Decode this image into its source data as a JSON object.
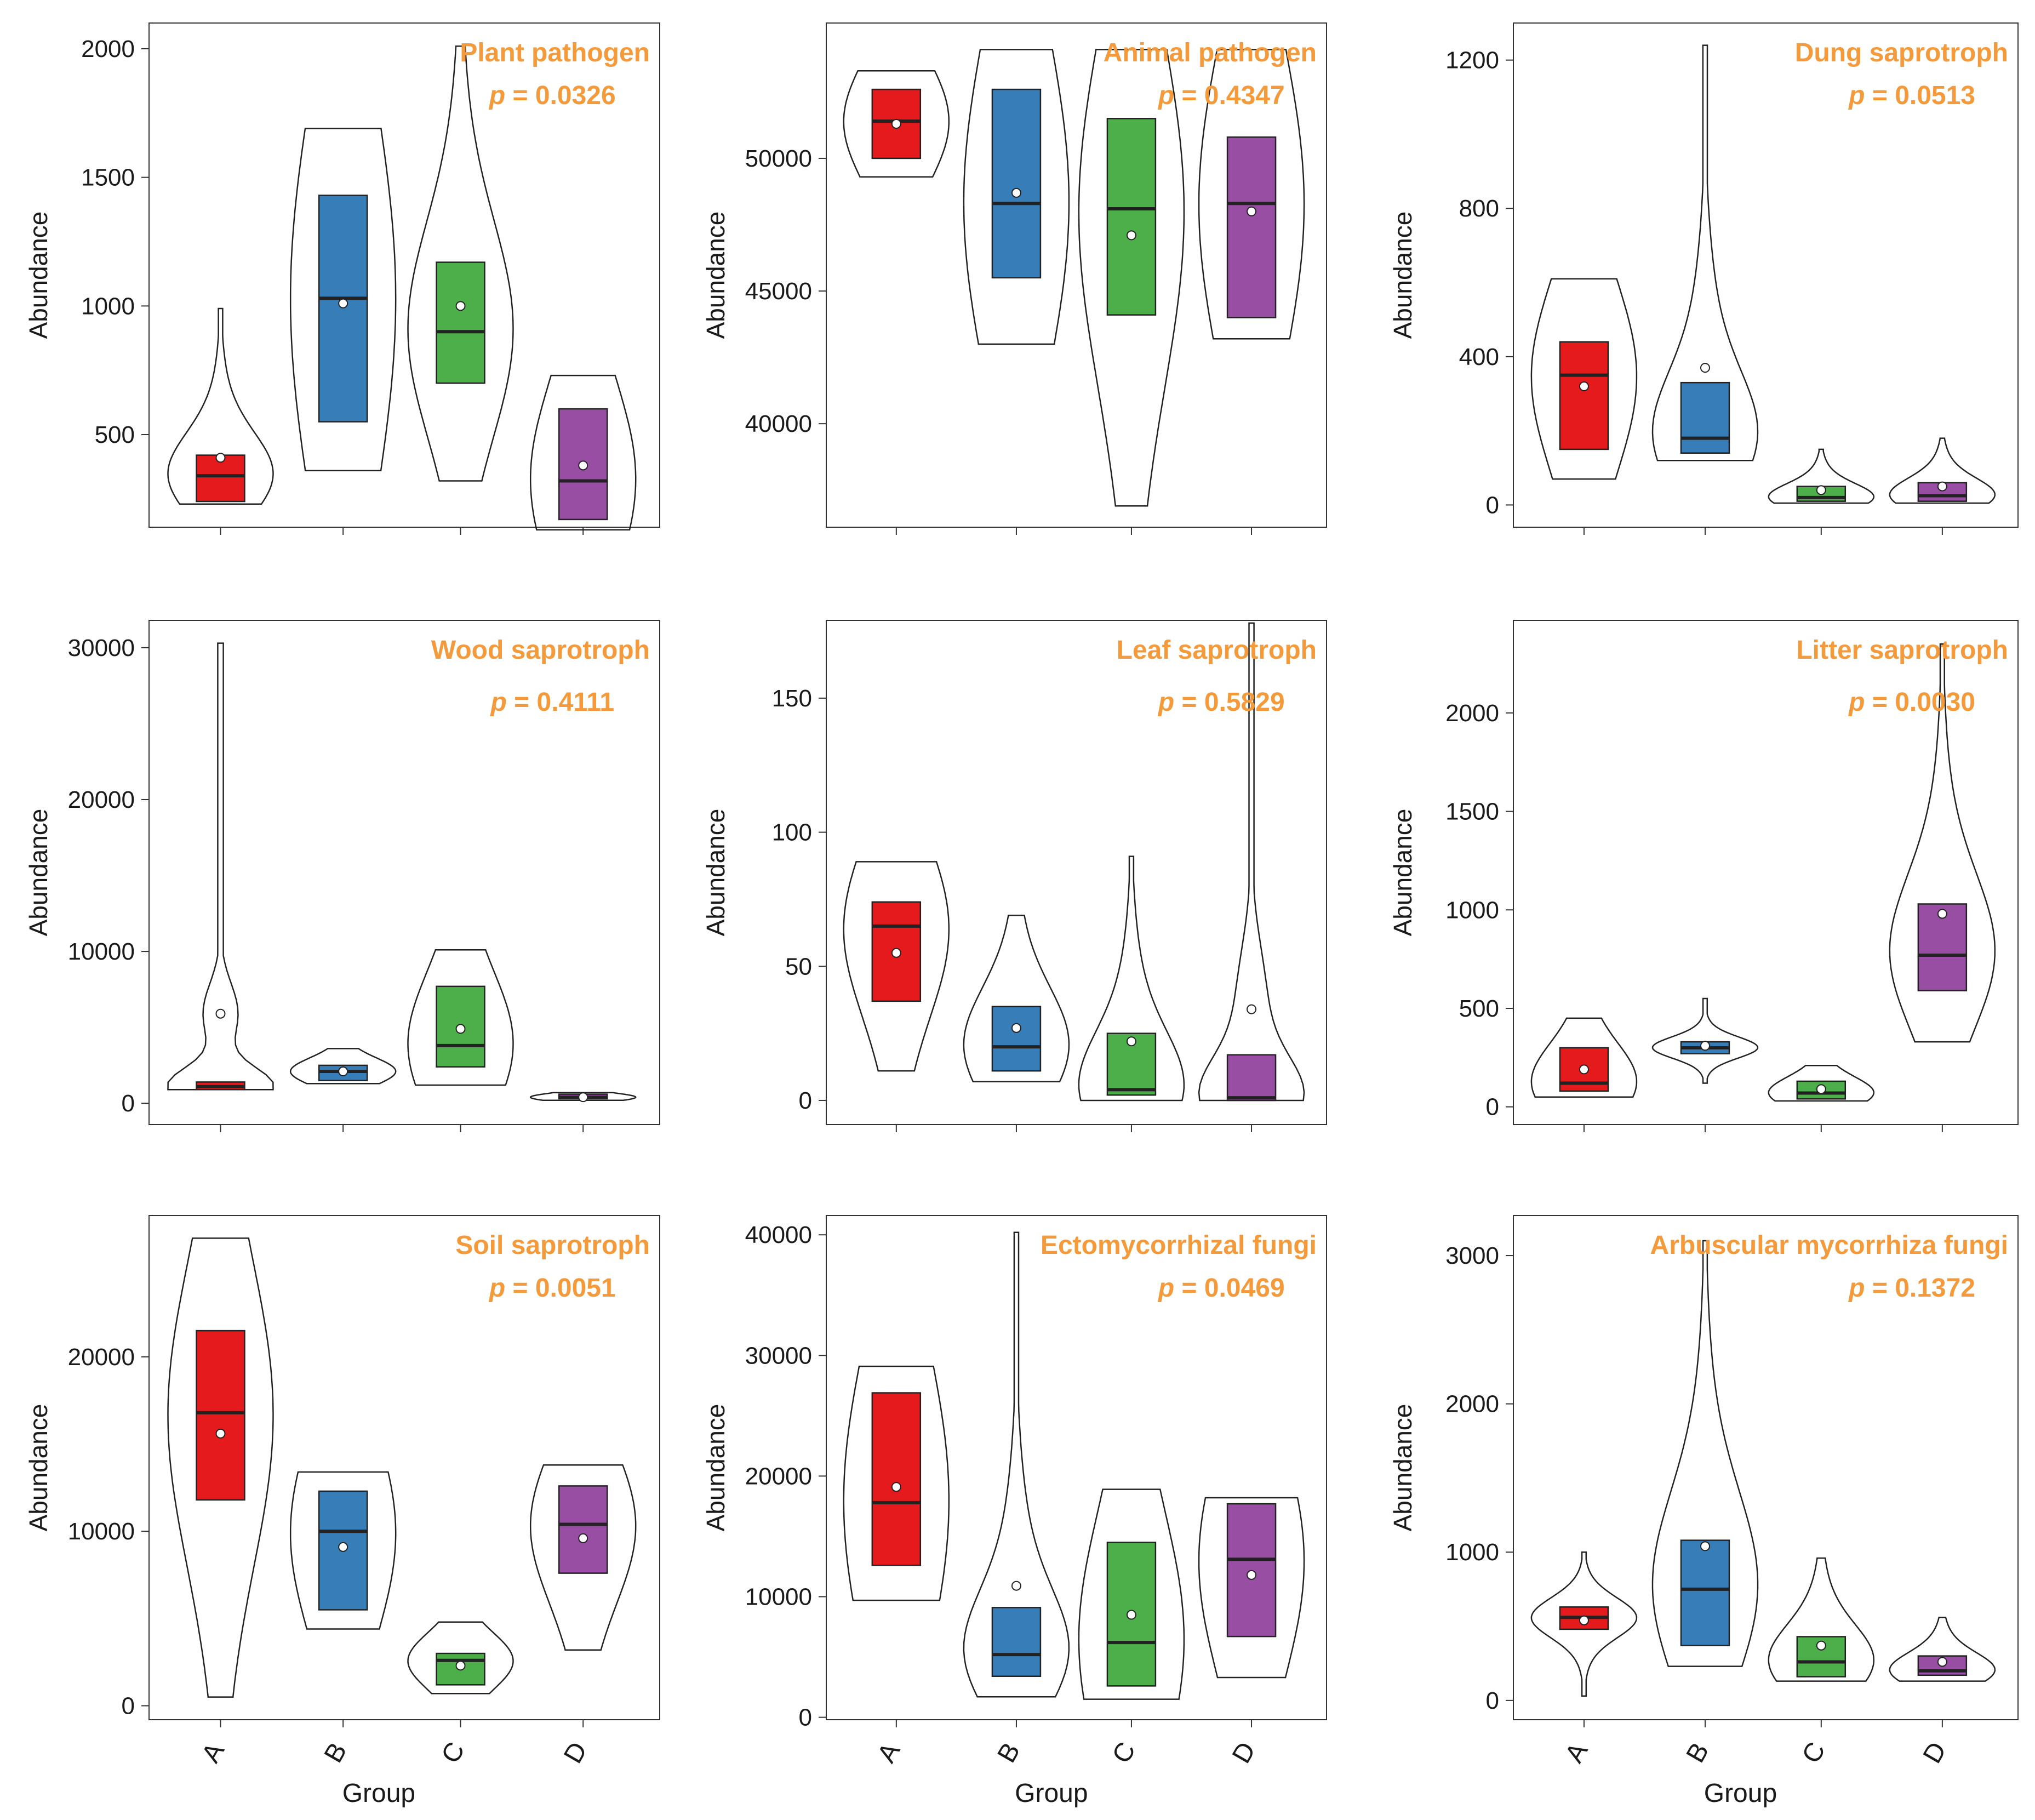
{
  "figure": {
    "ylabel": "Abundance",
    "xlabel": "Group",
    "groups": [
      "A",
      "B",
      "C",
      "D"
    ],
    "colors": {
      "A": "#e41a1c",
      "B": "#377eb8",
      "C": "#4daf4a",
      "D": "#984ea3"
    },
    "annotation_color": "#f59a3a"
  },
  "chart_data": [
    {
      "type": "violin-box",
      "title": "Plant pathogen",
      "p_label": "p",
      "p_text": " = 0.0326",
      "ylim": [
        140,
        2100
      ],
      "yticks": [
        500,
        1000,
        1500,
        2000
      ],
      "ytick_labels": [
        "500",
        "1000",
        "1500",
        "2000"
      ],
      "groups": [
        {
          "name": "A",
          "q1": 240,
          "median": 340,
          "q3": 420,
          "mean": 410,
          "min": 230,
          "max": 990
        },
        {
          "name": "B",
          "q1": 550,
          "median": 1030,
          "q3": 1430,
          "mean": 1010,
          "min": 360,
          "max": 1690
        },
        {
          "name": "C",
          "q1": 700,
          "median": 900,
          "q3": 1170,
          "mean": 1000,
          "min": 320,
          "max": 2010
        },
        {
          "name": "D",
          "q1": 170,
          "median": 320,
          "q3": 600,
          "mean": 380,
          "min": 130,
          "max": 730
        }
      ]
    },
    {
      "type": "violin-box",
      "title": "Animal pathogen",
      "p_label": "p",
      "p_text": " = 0.4347",
      "ylim": [
        36100,
        55100
      ],
      "yticks": [
        40000,
        45000,
        50000
      ],
      "ytick_labels": [
        "40000",
        "45000",
        "50000"
      ],
      "groups": [
        {
          "name": "A",
          "q1": 50000,
          "median": 51400,
          "q3": 52600,
          "mean": 51300,
          "min": 49300,
          "max": 53300
        },
        {
          "name": "B",
          "q1": 45500,
          "median": 48300,
          "q3": 52600,
          "mean": 48700,
          "min": 43000,
          "max": 54100
        },
        {
          "name": "C",
          "q1": 44100,
          "median": 48100,
          "q3": 51500,
          "mean": 47100,
          "min": 36900,
          "max": 54100
        },
        {
          "name": "D",
          "q1": 44000,
          "median": 48300,
          "q3": 50800,
          "mean": 48000,
          "min": 43200,
          "max": 54100
        }
      ]
    },
    {
      "type": "violin-box",
      "title": "Dung saprotroph",
      "p_label": "p",
      "p_text": " = 0.0513",
      "ylim": [
        -60,
        1300
      ],
      "yticks": [
        0,
        400,
        800,
        1200
      ],
      "ytick_labels": [
        "0",
        "400",
        "800",
        "1200"
      ],
      "groups": [
        {
          "name": "A",
          "q1": 150,
          "median": 350,
          "q3": 440,
          "mean": 320,
          "min": 70,
          "max": 610
        },
        {
          "name": "B",
          "q1": 140,
          "median": 180,
          "q3": 330,
          "mean": 370,
          "min": 120,
          "max": 1240
        },
        {
          "name": "C",
          "q1": 10,
          "median": 20,
          "q3": 50,
          "mean": 40,
          "min": 5,
          "max": 150
        },
        {
          "name": "D",
          "q1": 10,
          "median": 25,
          "q3": 60,
          "mean": 50,
          "min": 5,
          "max": 180
        }
      ]
    },
    {
      "type": "violin-box",
      "title": "Wood saprotroph",
      "p_label": "p",
      "p_text": " = 0.4111",
      "ylim": [
        -1400,
        31800
      ],
      "yticks": [
        0,
        10000,
        20000,
        30000
      ],
      "ytick_labels": [
        "0",
        "10000",
        "20000",
        "30000"
      ],
      "groups": [
        {
          "name": "A",
          "q1": 900,
          "median": 1100,
          "q3": 1400,
          "mean": 5900,
          "min": 900,
          "max": 30300
        },
        {
          "name": "B",
          "q1": 1500,
          "median": 2100,
          "q3": 2500,
          "mean": 2100,
          "min": 1300,
          "max": 3600
        },
        {
          "name": "C",
          "q1": 2400,
          "median": 3800,
          "q3": 7700,
          "mean": 4900,
          "min": 1200,
          "max": 10100
        },
        {
          "name": "D",
          "q1": 300,
          "median": 400,
          "q3": 600,
          "mean": 400,
          "min": 200,
          "max": 700
        }
      ]
    },
    {
      "type": "violin-box",
      "title": "Leaf saprotroph",
      "p_label": "p",
      "p_text": " = 0.5829",
      "ylim": [
        -9,
        179
      ],
      "yticks": [
        0,
        50,
        100,
        150
      ],
      "ytick_labels": [
        "0",
        "50",
        "100",
        "150"
      ],
      "groups": [
        {
          "name": "A",
          "q1": 37,
          "median": 65,
          "q3": 74,
          "mean": 55,
          "min": 11,
          "max": 89
        },
        {
          "name": "B",
          "q1": 11,
          "median": 20,
          "q3": 35,
          "mean": 27,
          "min": 7,
          "max": 69
        },
        {
          "name": "C",
          "q1": 2,
          "median": 4,
          "q3": 25,
          "mean": 22,
          "min": 0,
          "max": 91
        },
        {
          "name": "D",
          "q1": 0,
          "median": 1,
          "q3": 17,
          "mean": 34,
          "min": 0,
          "max": 178
        }
      ]
    },
    {
      "type": "violin-box",
      "title": "Litter saprotroph",
      "p_label": "p",
      "p_text": " = 0.0030",
      "ylim": [
        -90,
        2470
      ],
      "yticks": [
        0,
        500,
        1000,
        1500,
        2000
      ],
      "ytick_labels": [
        "0",
        "500",
        "1000",
        "1500",
        "2000"
      ],
      "groups": [
        {
          "name": "A",
          "q1": 80,
          "median": 120,
          "q3": 300,
          "mean": 190,
          "min": 50,
          "max": 450
        },
        {
          "name": "B",
          "q1": 270,
          "median": 300,
          "q3": 330,
          "mean": 310,
          "min": 120,
          "max": 550
        },
        {
          "name": "C",
          "q1": 40,
          "median": 70,
          "q3": 130,
          "mean": 90,
          "min": 30,
          "max": 210
        },
        {
          "name": "D",
          "q1": 590,
          "median": 770,
          "q3": 1030,
          "mean": 980,
          "min": 330,
          "max": 2350
        }
      ]
    },
    {
      "type": "violin-box",
      "title": "Soil saprotroph",
      "p_label": "p",
      "p_text": " = 0.0051",
      "ylim": [
        -800,
        28100
      ],
      "yticks": [
        0,
        10000,
        20000
      ],
      "ytick_labels": [
        "0",
        "10000",
        "20000"
      ],
      "groups": [
        {
          "name": "A",
          "q1": 11800,
          "median": 16800,
          "q3": 21500,
          "mean": 15600,
          "min": 500,
          "max": 26800
        },
        {
          "name": "B",
          "q1": 5500,
          "median": 10000,
          "q3": 12300,
          "mean": 9100,
          "min": 4400,
          "max": 13400
        },
        {
          "name": "C",
          "q1": 1200,
          "median": 2600,
          "q3": 3000,
          "mean": 2300,
          "min": 700,
          "max": 4800
        },
        {
          "name": "D",
          "q1": 7600,
          "median": 10400,
          "q3": 12600,
          "mean": 9600,
          "min": 3200,
          "max": 13800
        }
      ]
    },
    {
      "type": "violin-box",
      "title": "Ectomycorrhizal fungi",
      "p_label": "p",
      "p_text": " = 0.0469",
      "ylim": [
        -200,
        41600
      ],
      "yticks": [
        0,
        10000,
        20000,
        30000,
        40000
      ],
      "ytick_labels": [
        "0",
        "10000",
        "20000",
        "30000",
        "40000"
      ],
      "groups": [
        {
          "name": "A",
          "q1": 12600,
          "median": 17800,
          "q3": 26900,
          "mean": 19100,
          "min": 9700,
          "max": 29100
        },
        {
          "name": "B",
          "q1": 3400,
          "median": 5200,
          "q3": 9100,
          "mean": 10900,
          "min": 1700,
          "max": 40200
        },
        {
          "name": "C",
          "q1": 2600,
          "median": 6200,
          "q3": 14500,
          "mean": 8500,
          "min": 1500,
          "max": 18900
        },
        {
          "name": "D",
          "q1": 6700,
          "median": 13100,
          "q3": 17700,
          "mean": 11800,
          "min": 3300,
          "max": 18200
        }
      ]
    },
    {
      "type": "violin-box",
      "title": "Arbuscular mycorrhiza fungi",
      "p_label": "p",
      "p_text": " = 0.1372",
      "ylim": [
        -130,
        3270
      ],
      "yticks": [
        0,
        1000,
        2000,
        3000
      ],
      "ytick_labels": [
        "0",
        "1000",
        "2000",
        "3000"
      ],
      "groups": [
        {
          "name": "A",
          "q1": 480,
          "median": 560,
          "q3": 630,
          "mean": 540,
          "min": 30,
          "max": 1000
        },
        {
          "name": "B",
          "q1": 370,
          "median": 750,
          "q3": 1080,
          "mean": 1040,
          "min": 230,
          "max": 3100
        },
        {
          "name": "C",
          "q1": 160,
          "median": 260,
          "q3": 430,
          "mean": 370,
          "min": 130,
          "max": 960
        },
        {
          "name": "D",
          "q1": 170,
          "median": 200,
          "q3": 300,
          "mean": 260,
          "min": 130,
          "max": 560
        }
      ]
    }
  ]
}
